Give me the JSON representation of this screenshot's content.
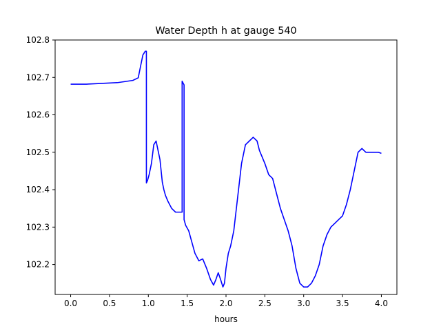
{
  "chart_data": {
    "type": "line",
    "title": "Water Depth h at gauge 540",
    "xlabel": "hours",
    "ylabel": "",
    "xlim": [
      -0.2,
      4.2
    ],
    "ylim": [
      102.12,
      102.8
    ],
    "xticks": [
      "0.0",
      "0.5",
      "1.0",
      "1.5",
      "2.0",
      "2.5",
      "3.0",
      "3.5",
      "4.0"
    ],
    "xtick_values": [
      0.0,
      0.5,
      1.0,
      1.5,
      2.0,
      2.5,
      3.0,
      3.5,
      4.0
    ],
    "yticks": [
      "102.2",
      "102.3",
      "102.4",
      "102.5",
      "102.6",
      "102.7",
      "102.8"
    ],
    "ytick_values": [
      102.2,
      102.3,
      102.4,
      102.5,
      102.6,
      102.7,
      102.8
    ],
    "grid": false,
    "series": [
      {
        "color": "#0000ff",
        "x": [
          0.0,
          0.2,
          0.4,
          0.6,
          0.8,
          0.87,
          0.9,
          0.93,
          0.96,
          0.975,
          0.975,
          0.99,
          1.01,
          1.04,
          1.07,
          1.1,
          1.13,
          1.15,
          1.18,
          1.2,
          1.22,
          1.25,
          1.3,
          1.35,
          1.4,
          1.435,
          1.435,
          1.46,
          1.46,
          1.48,
          1.52,
          1.56,
          1.6,
          1.65,
          1.7,
          1.75,
          1.8,
          1.84,
          1.87,
          1.9,
          1.93,
          1.96,
          1.98,
          2.0,
          2.03,
          2.06,
          2.1,
          2.15,
          2.2,
          2.25,
          2.3,
          2.35,
          2.4,
          2.43,
          2.46,
          2.5,
          2.55,
          2.6,
          2.65,
          2.7,
          2.75,
          2.8,
          2.85,
          2.9,
          2.95,
          3.0,
          3.05,
          3.1,
          3.15,
          3.2,
          3.25,
          3.3,
          3.35,
          3.4,
          3.45,
          3.5,
          3.55,
          3.6,
          3.65,
          3.7,
          3.75,
          3.8,
          3.84,
          3.88,
          3.92,
          3.96,
          4.0
        ],
        "y": [
          102.682,
          102.682,
          102.684,
          102.686,
          102.692,
          102.699,
          102.73,
          102.76,
          102.77,
          102.77,
          102.418,
          102.425,
          102.44,
          102.47,
          102.52,
          102.53,
          102.5,
          102.48,
          102.42,
          102.4,
          102.385,
          102.37,
          102.35,
          102.34,
          102.34,
          102.34,
          102.69,
          102.68,
          102.32,
          102.305,
          102.29,
          102.26,
          102.23,
          102.21,
          102.215,
          102.19,
          102.16,
          102.145,
          102.16,
          102.178,
          102.16,
          102.14,
          102.15,
          102.19,
          102.23,
          102.25,
          102.29,
          102.38,
          102.47,
          102.52,
          102.53,
          102.54,
          102.53,
          102.505,
          102.49,
          102.47,
          102.44,
          102.43,
          102.39,
          102.35,
          102.32,
          102.29,
          102.25,
          102.19,
          102.15,
          102.14,
          102.14,
          102.15,
          102.17,
          102.2,
          102.25,
          102.28,
          102.3,
          102.31,
          102.32,
          102.33,
          102.36,
          102.4,
          102.45,
          102.5,
          102.51,
          102.5,
          102.5,
          102.5,
          102.5,
          102.5,
          102.497
        ]
      }
    ]
  }
}
